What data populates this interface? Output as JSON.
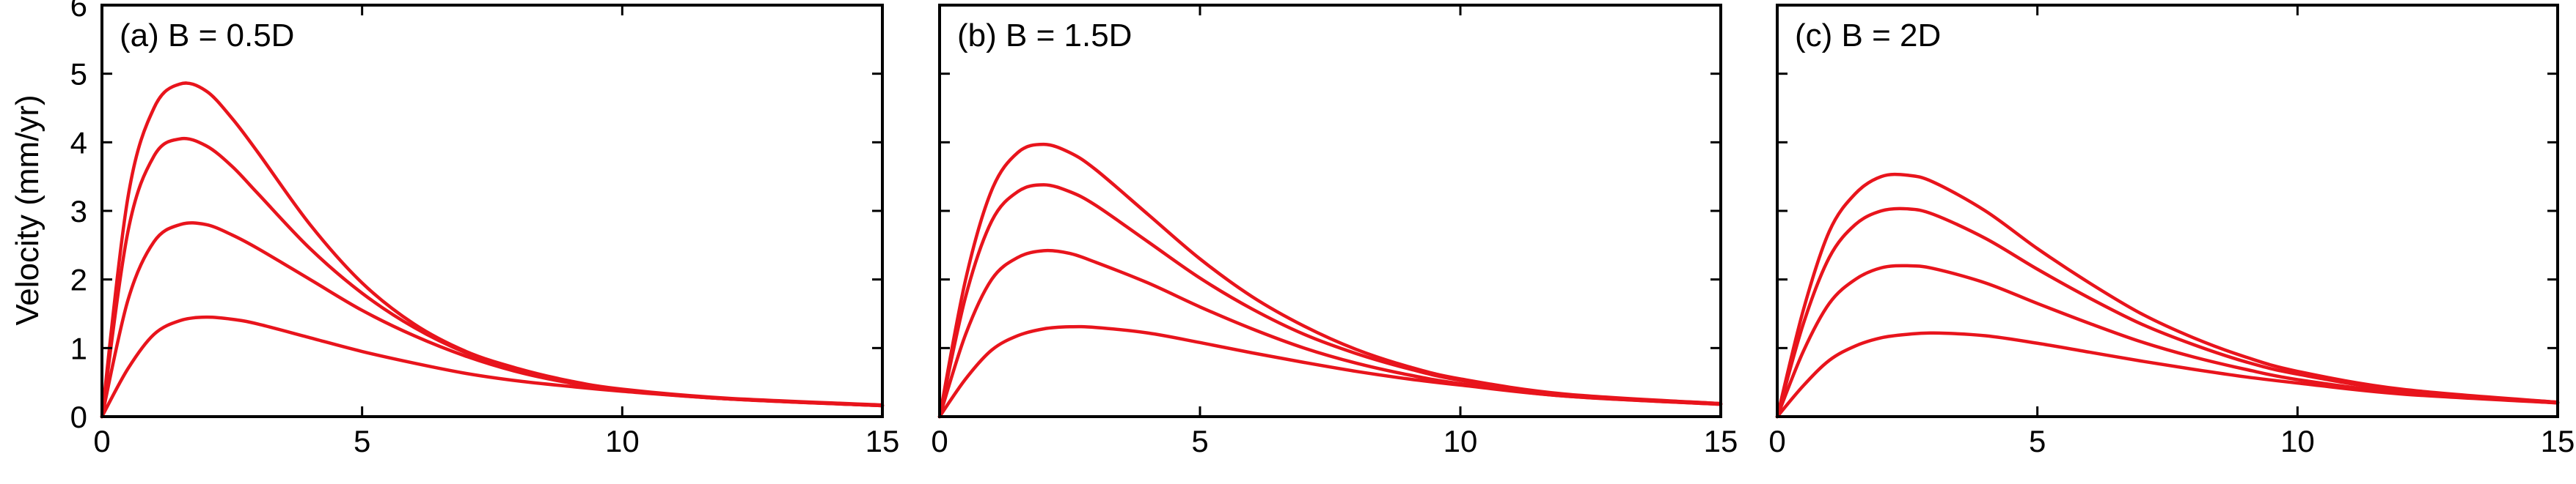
{
  "figure": {
    "ylabel": "Velocity (mm/yr)",
    "line_color": "#e8141c",
    "axis_color": "#000000"
  },
  "chart_data": [
    {
      "type": "line",
      "title": "(a) B = 0.5D",
      "xlabel": "",
      "ylabel": "Velocity (mm/yr)",
      "xlim": [
        0,
        15
      ],
      "ylim": [
        0,
        6
      ],
      "xticks": [
        0,
        5,
        10,
        15
      ],
      "yticks": [
        0,
        1,
        2,
        3,
        4,
        5,
        6
      ],
      "grid": false,
      "x": [
        0,
        0.5,
        1,
        1.5,
        2,
        2.5,
        3,
        4,
        5,
        6,
        7,
        8,
        9,
        10,
        12,
        15
      ],
      "series": [
        {
          "values": [
            0,
            3.2,
            4.5,
            4.85,
            4.75,
            4.35,
            3.85,
            2.8,
            1.95,
            1.35,
            0.95,
            0.7,
            0.52,
            0.4,
            0.27,
            0.17
          ]
        },
        {
          "values": [
            0,
            2.7,
            3.8,
            4.05,
            3.95,
            3.65,
            3.25,
            2.45,
            1.8,
            1.3,
            0.93,
            0.68,
            0.5,
            0.39,
            0.26,
            0.16
          ]
        },
        {
          "values": [
            0,
            1.7,
            2.55,
            2.8,
            2.8,
            2.65,
            2.45,
            2.0,
            1.55,
            1.18,
            0.88,
            0.65,
            0.49,
            0.38,
            0.26,
            0.16
          ]
        },
        {
          "values": [
            0,
            0.7,
            1.2,
            1.4,
            1.45,
            1.42,
            1.35,
            1.15,
            0.95,
            0.78,
            0.63,
            0.52,
            0.44,
            0.37,
            0.26,
            0.16
          ]
        }
      ]
    },
    {
      "type": "line",
      "title": "(b) B = 1.5D",
      "xlabel": "",
      "ylabel": "",
      "xlim": [
        0,
        15
      ],
      "ylim": [
        0,
        6
      ],
      "xticks": [
        0,
        5,
        10,
        15
      ],
      "yticks": [
        0,
        1,
        2,
        3,
        4,
        5,
        6
      ],
      "grid": false,
      "x": [
        0,
        0.5,
        1,
        1.5,
        2,
        2.5,
        3,
        4,
        5,
        6,
        7,
        8,
        9,
        10,
        12,
        15
      ],
      "series": [
        {
          "values": [
            0,
            2.0,
            3.3,
            3.85,
            3.97,
            3.85,
            3.6,
            2.95,
            2.3,
            1.75,
            1.32,
            0.98,
            0.73,
            0.55,
            0.33,
            0.19
          ]
        },
        {
          "values": [
            0,
            1.75,
            2.85,
            3.28,
            3.38,
            3.28,
            3.08,
            2.55,
            2.02,
            1.57,
            1.2,
            0.92,
            0.7,
            0.53,
            0.32,
            0.19
          ]
        },
        {
          "values": [
            0,
            1.2,
            2.0,
            2.32,
            2.42,
            2.38,
            2.25,
            1.95,
            1.6,
            1.28,
            1.0,
            0.78,
            0.61,
            0.48,
            0.3,
            0.18
          ]
        },
        {
          "values": [
            0,
            0.55,
            0.97,
            1.18,
            1.28,
            1.31,
            1.3,
            1.22,
            1.08,
            0.93,
            0.79,
            0.66,
            0.55,
            0.46,
            0.3,
            0.18
          ]
        }
      ]
    },
    {
      "type": "line",
      "title": "(c) B = 2D",
      "xlabel": "",
      "ylabel": "",
      "xlim": [
        0,
        15
      ],
      "ylim": [
        0,
        6
      ],
      "xticks": [
        0,
        5,
        10,
        15
      ],
      "yticks": [
        0,
        1,
        2,
        3,
        4,
        5,
        6
      ],
      "grid": false,
      "x": [
        0,
        0.5,
        1,
        1.5,
        2,
        2.5,
        3,
        4,
        5,
        6,
        7,
        8,
        9,
        10,
        12,
        15
      ],
      "series": [
        {
          "values": [
            0,
            1.55,
            2.7,
            3.25,
            3.5,
            3.52,
            3.42,
            3.0,
            2.45,
            1.95,
            1.5,
            1.15,
            0.87,
            0.66,
            0.4,
            0.21
          ]
        },
        {
          "values": [
            0,
            1.35,
            2.32,
            2.8,
            3.0,
            3.03,
            2.95,
            2.6,
            2.15,
            1.73,
            1.35,
            1.05,
            0.8,
            0.62,
            0.38,
            0.21
          ]
        },
        {
          "values": [
            0,
            0.95,
            1.65,
            2.0,
            2.17,
            2.2,
            2.16,
            1.95,
            1.65,
            1.36,
            1.09,
            0.87,
            0.69,
            0.54,
            0.35,
            0.2
          ]
        },
        {
          "values": [
            0,
            0.45,
            0.82,
            1.03,
            1.15,
            1.2,
            1.22,
            1.18,
            1.07,
            0.94,
            0.81,
            0.69,
            0.58,
            0.49,
            0.33,
            0.2
          ]
        }
      ]
    }
  ]
}
